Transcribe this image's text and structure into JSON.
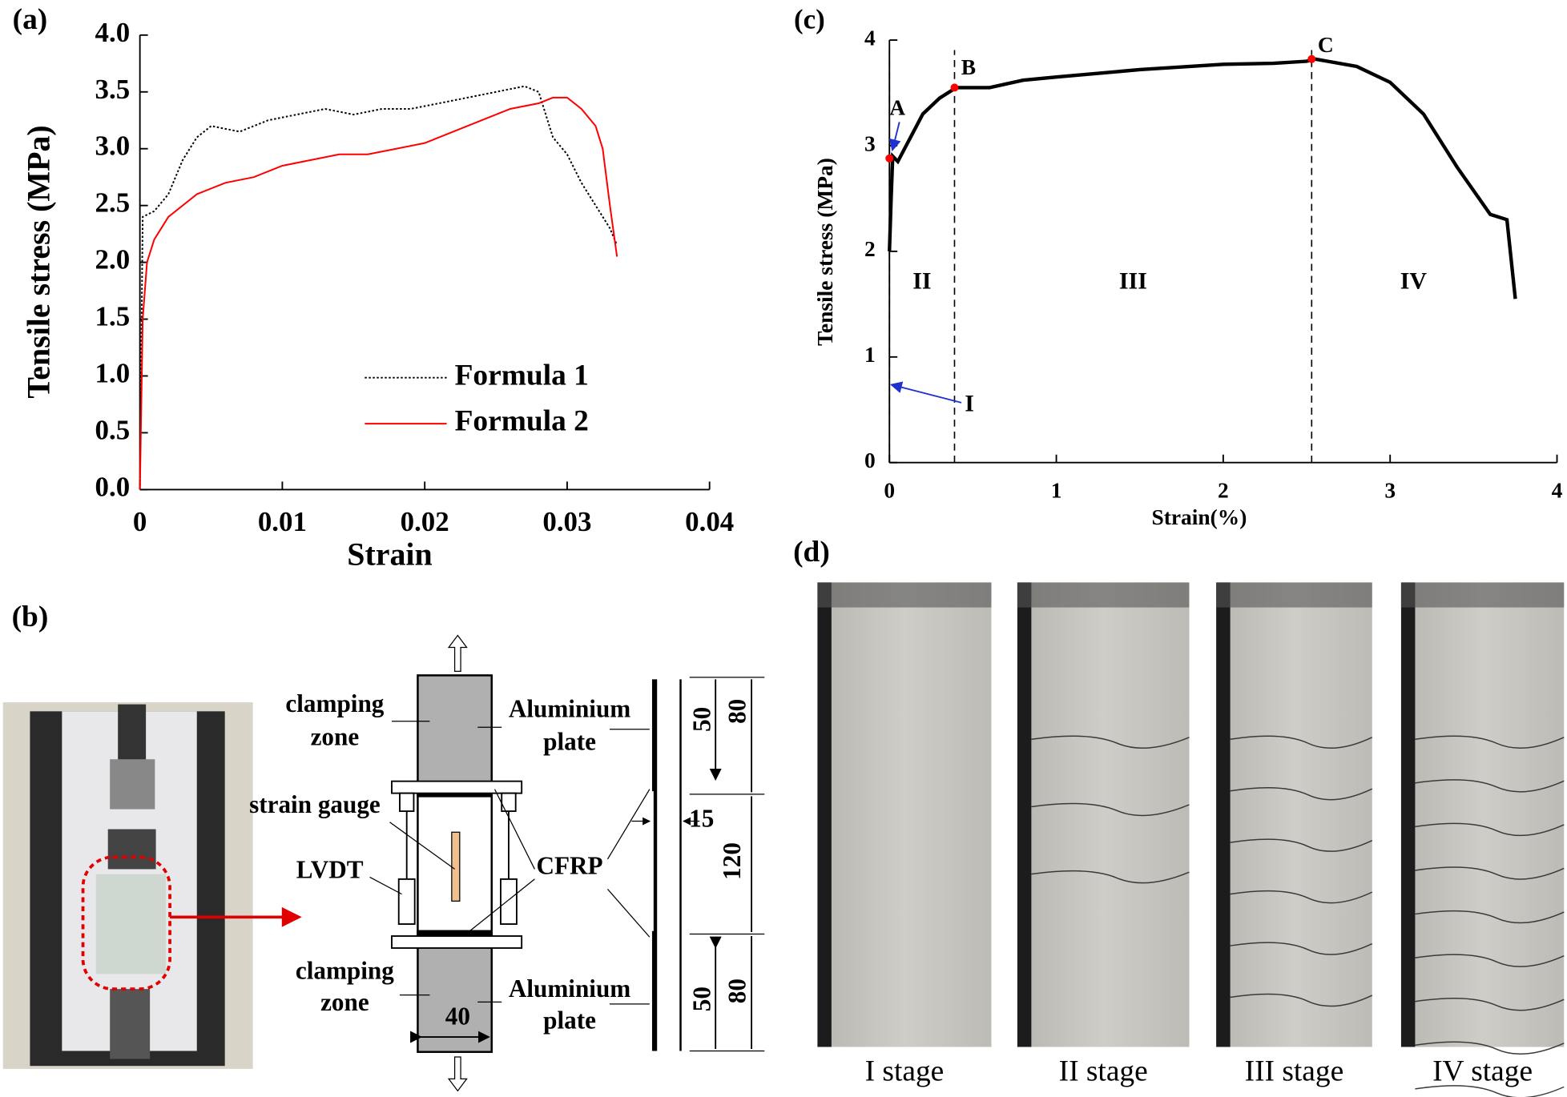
{
  "chart_data": [
    {
      "type": "line",
      "panel": "(a)",
      "xlabel": "Strain",
      "ylabel": "Tensile stress (MPa)",
      "xlim": [
        0,
        0.04
      ],
      "xticks": [
        0,
        0.01,
        0.02,
        0.03,
        0.04
      ],
      "ylim": [
        0,
        4
      ],
      "yticks": [
        {
          "value": 0,
          "label": "0.0"
        },
        0.5,
        {
          "value": 1,
          "label": "1.0"
        },
        1.5,
        {
          "value": 2,
          "label": "2.0"
        },
        2.5,
        {
          "value": 3,
          "label": "3.0"
        },
        3.5,
        {
          "value": 4,
          "label": "4.0"
        }
      ],
      "series": [
        {
          "name": "Formula 1",
          "color": "#000000",
          "dash": true,
          "x": [
            0,
            0.0002,
            0.001,
            0.002,
            0.003,
            0.004,
            0.005,
            0.007,
            0.009,
            0.011,
            0.013,
            0.015,
            0.017,
            0.019,
            0.021,
            0.023,
            0.025,
            0.027,
            0.028,
            0.029,
            0.03,
            0.031,
            0.032,
            0.033,
            0.0335
          ],
          "values": [
            0,
            2.4,
            2.45,
            2.6,
            2.9,
            3.1,
            3.2,
            3.15,
            3.25,
            3.3,
            3.35,
            3.3,
            3.35,
            3.35,
            3.4,
            3.45,
            3.5,
            3.55,
            3.5,
            3.1,
            2.95,
            2.7,
            2.5,
            2.3,
            2.15
          ]
        },
        {
          "name": "Formula 2",
          "color": "#ff0000",
          "dash": false,
          "x": [
            0,
            0.0002,
            0.0005,
            0.001,
            0.002,
            0.004,
            0.006,
            0.008,
            0.01,
            0.012,
            0.014,
            0.016,
            0.018,
            0.02,
            0.022,
            0.024,
            0.026,
            0.028,
            0.029,
            0.03,
            0.031,
            0.032,
            0.0325,
            0.033,
            0.0335
          ],
          "values": [
            0,
            1.5,
            2.0,
            2.2,
            2.4,
            2.6,
            2.7,
            2.75,
            2.85,
            2.9,
            2.95,
            2.95,
            3.0,
            3.05,
            3.15,
            3.25,
            3.35,
            3.4,
            3.45,
            3.45,
            3.35,
            3.2,
            3.0,
            2.5,
            2.05
          ]
        }
      ]
    },
    {
      "type": "line",
      "panel": "(c)",
      "xlabel": "Strain(%)",
      "ylabel": "Tensile stress (MPa)",
      "xlim": [
        0,
        4
      ],
      "xticks": [
        0,
        1,
        2,
        3,
        4
      ],
      "ylim": [
        0,
        4
      ],
      "yticks": [
        0,
        1,
        2,
        3,
        4
      ],
      "color": "#000000",
      "x": [
        0,
        0.01,
        0.02,
        0.05,
        0.1,
        0.2,
        0.3,
        0.4,
        0.6,
        0.8,
        1.0,
        1.5,
        2.0,
        2.3,
        2.5,
        2.55,
        2.8,
        3.0,
        3.2,
        3.4,
        3.6,
        3.7,
        3.75
      ],
      "values": [
        2.0,
        2.5,
        2.9,
        2.85,
        3.0,
        3.3,
        3.45,
        3.55,
        3.55,
        3.62,
        3.65,
        3.72,
        3.77,
        3.78,
        3.8,
        3.82,
        3.75,
        3.6,
        3.3,
        2.8,
        2.35,
        2.3,
        1.55
      ],
      "points": {
        "color": "#ff0000",
        "labels": [
          "A",
          "B",
          "C"
        ],
        "x": [
          0.0,
          0.39,
          2.53
        ],
        "values": [
          2.88,
          3.55,
          3.82
        ]
      },
      "stage_bounds": [
        0,
        0.39,
        2.53
      ],
      "stages": [
        "II",
        "III",
        "IV"
      ],
      "annotation": "I"
    }
  ],
  "diagram": {
    "panel": "(b)",
    "labels": [
      "clamping",
      "zone",
      "Aluminium",
      "plate",
      "strain gauge",
      "LVDT",
      "CFRP",
      "clamping",
      "zone",
      "Aluminium",
      "plate",
      "40",
      "15"
    ],
    "dims": [
      "50",
      "80",
      "120",
      "50",
      "80"
    ]
  },
  "photos": {
    "panel": "(d)",
    "captions": [
      "I stage",
      "II stage",
      "III stage",
      "IV stage"
    ]
  }
}
